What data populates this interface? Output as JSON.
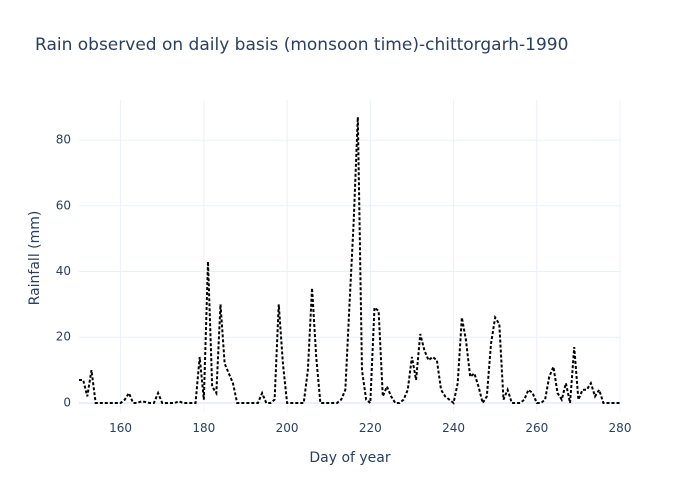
{
  "chart_data": {
    "type": "line",
    "title": "Rain observed on daily basis (monsoon time)-chittorgarh-1990",
    "x_label": "Day of year",
    "y_label": "Rainfall (mm)",
    "x": [
      150,
      151,
      152,
      153,
      154,
      155,
      156,
      157,
      158,
      159,
      160,
      161,
      162,
      163,
      164,
      165,
      166,
      167,
      168,
      169,
      170,
      171,
      172,
      173,
      174,
      175,
      176,
      177,
      178,
      179,
      180,
      181,
      182,
      183,
      184,
      185,
      186,
      187,
      188,
      189,
      190,
      191,
      192,
      193,
      194,
      195,
      196,
      197,
      198,
      199,
      200,
      201,
      202,
      203,
      204,
      205,
      206,
      207,
      208,
      209,
      210,
      211,
      212,
      213,
      214,
      215,
      216,
      217,
      218,
      219,
      220,
      221,
      222,
      223,
      224,
      225,
      226,
      227,
      228,
      229,
      230,
      231,
      232,
      233,
      234,
      235,
      236,
      237,
      238,
      239,
      240,
      241,
      242,
      243,
      244,
      245,
      246,
      247,
      248,
      249,
      250,
      251,
      252,
      253,
      254,
      255,
      256,
      257,
      258,
      259,
      260,
      261,
      262,
      263,
      264,
      265,
      266,
      267,
      268,
      269,
      270,
      271,
      272,
      273,
      274,
      275,
      276,
      277,
      278,
      279,
      280
    ],
    "series": [
      {
        "name": "Rainfall",
        "color": "#000000",
        "values": [
          7,
          7,
          2,
          10,
          0,
          0,
          0,
          0,
          0,
          0,
          0,
          1,
          3,
          0,
          0,
          0.5,
          0.3,
          0,
          0,
          3,
          0,
          0,
          0,
          0,
          0.5,
          0,
          0,
          0,
          0,
          14,
          1,
          43,
          5,
          3,
          30,
          12,
          9,
          6,
          0,
          0,
          0,
          0,
          0,
          0,
          3,
          0,
          0,
          1,
          30,
          12,
          0,
          0,
          0,
          0,
          0,
          10,
          35,
          14,
          0,
          0,
          0,
          0,
          0,
          1,
          4,
          30,
          55,
          87,
          10,
          1,
          0,
          29,
          28,
          2,
          5,
          2,
          0,
          0,
          1,
          4,
          14,
          7,
          21,
          16,
          13,
          14,
          13,
          4,
          2,
          1,
          0,
          6,
          26,
          19,
          8,
          9,
          5,
          0,
          2,
          18,
          26,
          24,
          1,
          4,
          0,
          0,
          0,
          1,
          4,
          3,
          0,
          0,
          1,
          8,
          11,
          3,
          1,
          6,
          0,
          17,
          1,
          4,
          4,
          6,
          2,
          4,
          0,
          0,
          0,
          0,
          0
        ]
      }
    ],
    "xlim": [
      150,
      280
    ],
    "ylim": [
      -2.6,
      92.2
    ],
    "xticks": [
      160,
      180,
      200,
      220,
      240,
      260,
      280
    ],
    "yticks": [
      0,
      20,
      40,
      60,
      80
    ],
    "grid": true
  }
}
